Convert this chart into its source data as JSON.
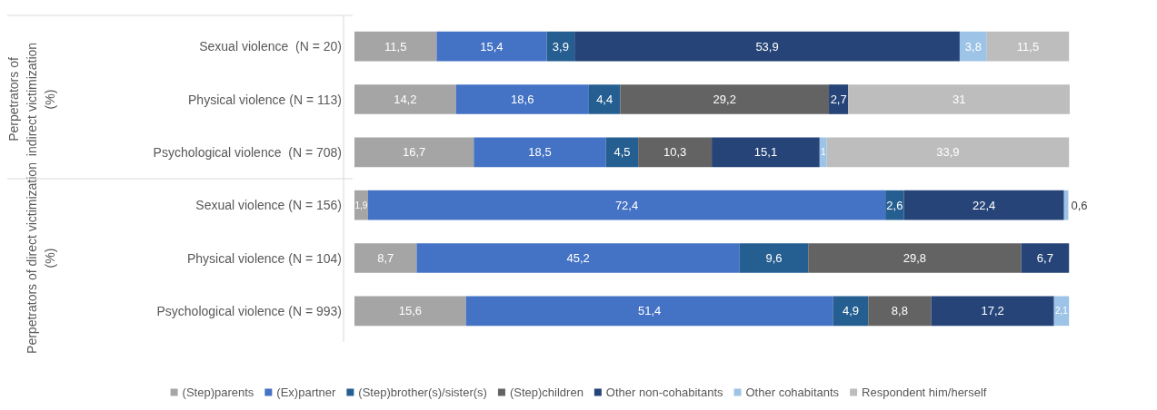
{
  "chart_data": {
    "type": "bar",
    "orientation": "horizontal",
    "stacked": true,
    "categories": [
      "Sexual violence  (N = 20)",
      "Physical violence (N = 113)",
      "Psychological violence  (N = 708)",
      "Sexual violence (N = 156)",
      "Physical violence (N = 104)",
      "Psychological violence (N = 993)"
    ],
    "series": [
      {
        "name": "(Step)parents",
        "color": "#a5a5a5",
        "values": [
          11.5,
          14.2,
          16.7,
          1.9,
          8.7,
          15.6
        ],
        "value_labels": [
          "11,5",
          "14,2",
          "16,7",
          "1,9",
          "8,7",
          "15,6"
        ]
      },
      {
        "name": "(Ex)partner",
        "color": "#4472c4",
        "values": [
          15.4,
          18.6,
          18.5,
          72.4,
          45.2,
          51.4
        ],
        "value_labels": [
          "15,4",
          "18,6",
          "18,5",
          "72,4",
          "45,2",
          "51,4"
        ]
      },
      {
        "name": "(Step)brother(s)/sister(s)",
        "color": "#255e91",
        "values": [
          3.9,
          4.4,
          4.5,
          2.6,
          9.6,
          4.9
        ],
        "value_labels": [
          "3,9",
          "4,4",
          "4,5",
          "2,6",
          "9,6",
          "4,9"
        ]
      },
      {
        "name": "(Step)children",
        "color": "#636363",
        "values": [
          null,
          29.2,
          10.3,
          null,
          29.8,
          8.8
        ],
        "value_labels": [
          null,
          "29,2",
          "10,3",
          null,
          "29,8",
          "8,8"
        ]
      },
      {
        "name": "Other non-cohabitants",
        "color": "#264478",
        "values": [
          53.9,
          2.7,
          15.1,
          22.4,
          6.7,
          17.2
        ],
        "value_labels": [
          "53,9",
          "2,7",
          "15,1",
          "22,4",
          "6,7",
          "17,2"
        ]
      },
      {
        "name": "Other cohabitants",
        "color": "#9dc3e6",
        "values": [
          3.8,
          null,
          1,
          0.6,
          null,
          2.1
        ],
        "value_labels": [
          "3,8",
          null,
          "1",
          "0,6",
          null,
          "2,1"
        ]
      },
      {
        "name": "Respondent him/herself",
        "color": "#bdbdbd",
        "values": [
          11.5,
          31,
          33.9,
          null,
          null,
          null
        ],
        "value_labels": [
          "11,5",
          "31",
          "33,9",
          null,
          null,
          null
        ]
      }
    ],
    "annotations": [
      "Perpetrators of indirect victimization (%)",
      "Perpetrators of direct victimization (%)"
    ],
    "legend": "bottom",
    "tick_labels": "y"
  }
}
